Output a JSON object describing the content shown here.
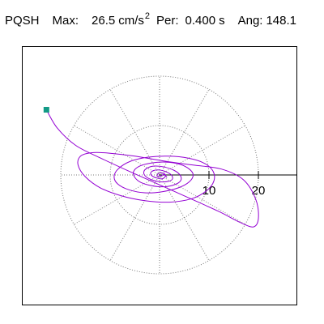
{
  "header": {
    "station": "PQSH",
    "max_label": "Max:",
    "max_value": "26.5",
    "max_unit": "cm/s",
    "max_unit_exp": "2",
    "per_label": "Per:",
    "per_value": "0.400",
    "per_unit": "s",
    "ang_label": "Ang:",
    "ang_value": "148.1"
  },
  "chart_data": {
    "type": "line",
    "subtype": "polar particle-motion hodogram",
    "title": "",
    "xlabel": "",
    "ylabel": "",
    "radial_rings": [
      10,
      20
    ],
    "radial_tick_labels": [
      "10",
      "20"
    ],
    "angle_step_deg": 30,
    "xlim": [
      -29,
      29
    ],
    "ylim": [
      -29,
      29
    ],
    "grid": true,
    "grid_style": "dotted",
    "max_amplitude": 26.5,
    "polarization_angle_deg": 148.1,
    "trace_color": "#9400D3",
    "start_marker_color": "#129A86",
    "series": [
      {
        "x": [
          -22.9,
          -20.7,
          -17.0,
          -12.1,
          -6.3,
          0.0,
          6.3,
          12.0,
          16.3,
          19.0,
          20.0,
          19.5,
          17.0,
          12.5,
          6.8,
          1.0,
          -5.0,
          -10.0,
          -13.8,
          -16.0,
          -16.5,
          -15.0,
          -12.0,
          -7.8,
          -3.0,
          2.0,
          6.5,
          9.5,
          11.0,
          10.8,
          9.0,
          5.8,
          1.8,
          -2.3,
          -5.8,
          -8.3,
          -9.2,
          -8.5,
          -6.2,
          -3.0,
          0.5,
          3.8,
          6.0,
          6.8,
          6.0,
          4.0,
          1.2,
          -1.8,
          -4.2,
          -5.3,
          -5.0,
          -3.8,
          -1.5,
          1.0,
          3.2,
          4.3,
          4.2,
          3.0,
          1.0,
          -1.0,
          -2.5,
          -3.2,
          -2.8,
          -1.5,
          0.2,
          1.8,
          2.6,
          2.4,
          1.4,
          0.0,
          -1.2,
          -1.8,
          -1.5,
          -0.6,
          0.4,
          1.0,
          1.2,
          0.6,
          -0.2,
          -0.5,
          -0.2,
          0.3,
          0.9,
          1.5
        ],
        "y": [
          13.2,
          9.5,
          6.0,
          3.5,
          0.8,
          -2.0,
          -4.8,
          -7.4,
          -9.6,
          -10.5,
          -8.8,
          -5.0,
          -1.0,
          1.2,
          2.0,
          2.8,
          3.8,
          4.4,
          4.5,
          3.8,
          2.0,
          -0.4,
          -2.6,
          -4.2,
          -5.2,
          -5.5,
          -4.8,
          -3.2,
          -1.2,
          0.8,
          2.4,
          3.4,
          3.8,
          3.6,
          2.8,
          1.3,
          -0.3,
          -1.8,
          -3.0,
          -3.6,
          -3.4,
          -2.6,
          -1.4,
          0.0,
          1.2,
          2.2,
          2.6,
          2.4,
          1.7,
          0.6,
          -0.5,
          -1.5,
          -2.2,
          -2.4,
          -1.9,
          -1.1,
          -0.1,
          0.9,
          1.6,
          1.8,
          1.4,
          0.6,
          -0.3,
          -1.0,
          -1.4,
          -1.3,
          -0.8,
          0.0,
          0.6,
          1.0,
          0.9,
          0.4,
          -0.2,
          -0.6,
          -0.8,
          -0.5,
          0.0,
          0.4,
          0.3,
          -0.1,
          -0.3,
          -0.2,
          0.1,
          -0.5
        ]
      }
    ]
  }
}
